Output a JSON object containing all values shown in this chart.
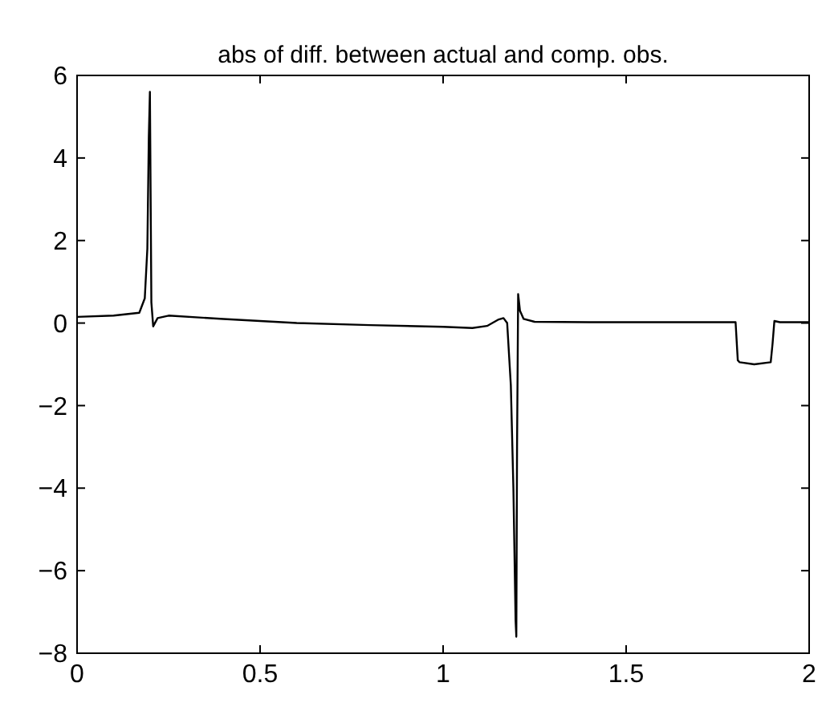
{
  "chart_data": {
    "type": "line",
    "title": "abs of diff. between actual and comp. obs.",
    "x": [
      0,
      0.1,
      0.17,
      0.185,
      0.192,
      0.196,
      0.199,
      0.203,
      0.208,
      0.22,
      0.25,
      0.4,
      0.6,
      0.8,
      1.0,
      1.08,
      1.12,
      1.15,
      1.165,
      1.175,
      1.185,
      1.192,
      1.198,
      1.2,
      1.202,
      1.205,
      1.21,
      1.22,
      1.25,
      1.4,
      1.6,
      1.799,
      1.805,
      1.81,
      1.85,
      1.895,
      1.9,
      1.905,
      1.92,
      2.0
    ],
    "series": [
      {
        "color": "#000000",
        "values": [
          0.15,
          0.18,
          0.25,
          0.6,
          1.8,
          4.5,
          5.6,
          0.5,
          -0.08,
          0.12,
          0.18,
          0.1,
          0.0,
          -0.05,
          -0.09,
          -0.12,
          -0.07,
          0.08,
          0.12,
          0,
          -1.5,
          -4,
          -7.2,
          -7.6,
          -3,
          0.7,
          0.3,
          0.1,
          0.03,
          0.02,
          0.02,
          0.02,
          -0.9,
          -0.95,
          -1,
          -0.95,
          -0.5,
          0.05,
          0.02,
          0.02
        ]
      }
    ],
    "xlim": [
      0,
      2
    ],
    "xticks": [
      0,
      0.5,
      1,
      1.5,
      2
    ],
    "ylim": [
      -8,
      6
    ],
    "yticks": [
      -8,
      -6,
      -4,
      -2,
      0,
      2,
      4,
      6
    ],
    "grid": false,
    "line_style": "solid"
  }
}
